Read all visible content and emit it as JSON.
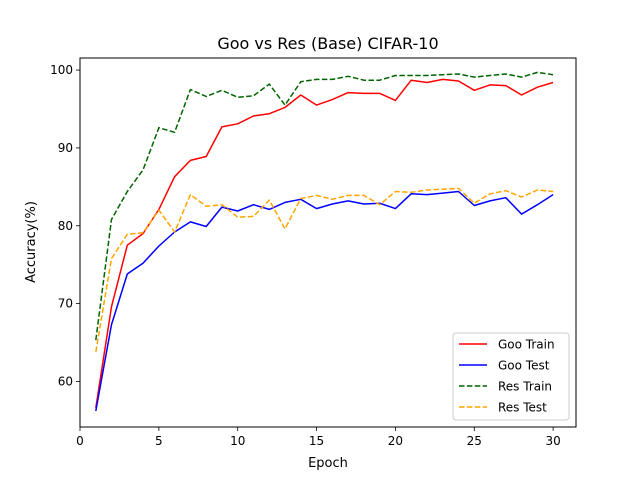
{
  "chart_data": {
    "type": "line",
    "title": "Goo vs Res (Base) CIFAR-10",
    "xlabel": "Epoch",
    "ylabel": "Accuracy(%)",
    "xlim": [
      0,
      31.45
    ],
    "ylim": [
      54.15,
      101.55
    ],
    "xticks": [
      0,
      5,
      10,
      15,
      20,
      25,
      30
    ],
    "yticks": [
      60,
      70,
      80,
      90,
      100
    ],
    "grid": false,
    "legend_position": "lower-right",
    "x": [
      1,
      2,
      3,
      4,
      5,
      6,
      7,
      8,
      9,
      10,
      11,
      12,
      13,
      14,
      15,
      16,
      17,
      18,
      19,
      20,
      21,
      22,
      23,
      24,
      25,
      26,
      27,
      28,
      29,
      30
    ],
    "series": [
      {
        "name": "Goo Train",
        "color": "#ff0000",
        "dash": "solid",
        "values": [
          56.6,
          69.6,
          77.5,
          79.0,
          82.1,
          86.3,
          88.4,
          88.9,
          92.7,
          93.1,
          94.1,
          94.4,
          95.2,
          96.8,
          95.5,
          96.2,
          97.1,
          97.0,
          97.0,
          96.1,
          98.7,
          98.4,
          98.8,
          98.6,
          97.4,
          98.1,
          98.0,
          96.8,
          97.8,
          98.4
        ]
      },
      {
        "name": "Goo Test",
        "color": "#0000ff",
        "dash": "solid",
        "values": [
          56.2,
          67.3,
          73.8,
          75.2,
          77.4,
          79.2,
          80.5,
          79.9,
          82.4,
          81.9,
          82.7,
          82.1,
          83.0,
          83.4,
          82.2,
          82.8,
          83.2,
          82.8,
          82.9,
          82.2,
          84.1,
          84.0,
          84.2,
          84.4,
          82.6,
          83.2,
          83.6,
          81.5,
          82.7,
          84.0
        ]
      },
      {
        "name": "Res Train",
        "color": "#006400",
        "dash": "dashed",
        "values": [
          65.3,
          80.8,
          84.4,
          87.2,
          92.6,
          92.0,
          97.5,
          96.6,
          97.4,
          96.5,
          96.7,
          98.2,
          95.5,
          98.5,
          98.8,
          98.8,
          99.2,
          98.7,
          98.7,
          99.3,
          99.3,
          99.3,
          99.4,
          99.5,
          99.1,
          99.3,
          99.5,
          99.1,
          99.7,
          99.4
        ]
      },
      {
        "name": "Res Test",
        "color": "#ffa500",
        "dash": "dashed",
        "values": [
          63.8,
          75.8,
          78.9,
          79.1,
          82.0,
          79.2,
          84.0,
          82.5,
          82.7,
          81.1,
          81.2,
          83.3,
          79.6,
          83.5,
          83.9,
          83.4,
          83.9,
          83.9,
          82.7,
          84.4,
          84.3,
          84.6,
          84.7,
          84.8,
          82.9,
          84.1,
          84.5,
          83.7,
          84.6,
          84.4
        ]
      }
    ]
  }
}
